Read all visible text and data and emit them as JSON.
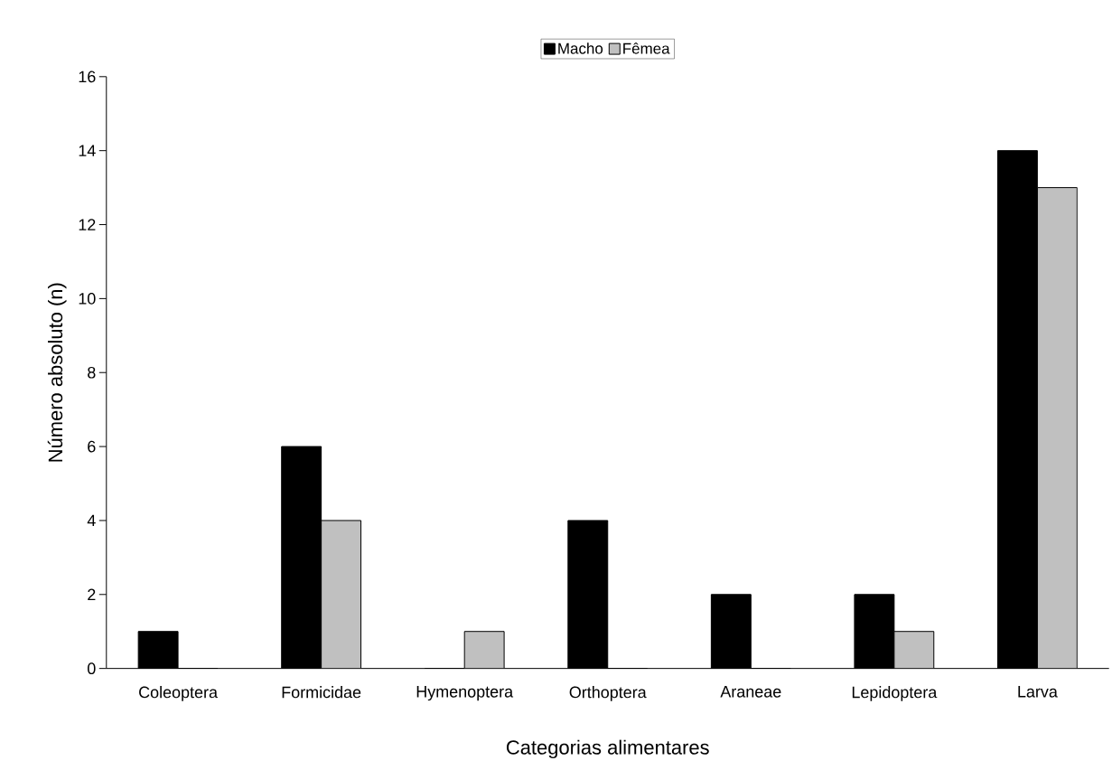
{
  "chart_data": {
    "type": "bar",
    "xlabel": "Categorias alimentares",
    "ylabel": "Número absoluto (n)",
    "categories": [
      "Coleoptera",
      "Formicidae",
      "Hymenoptera",
      "Orthoptera",
      "Araneae",
      "Lepidoptera",
      "Larva"
    ],
    "series": [
      {
        "name": "Macho",
        "color": "#000000",
        "values": [
          1,
          6,
          0,
          4,
          2,
          2,
          14
        ]
      },
      {
        "name": "Fêmea",
        "color": "#c0c0c0",
        "values": [
          0,
          4,
          1,
          0,
          0,
          1,
          13
        ]
      }
    ],
    "ylim": [
      0,
      16
    ],
    "yticks": [
      0,
      2,
      4,
      6,
      8,
      10,
      12,
      14,
      16
    ],
    "grid": false,
    "legend": "top"
  }
}
